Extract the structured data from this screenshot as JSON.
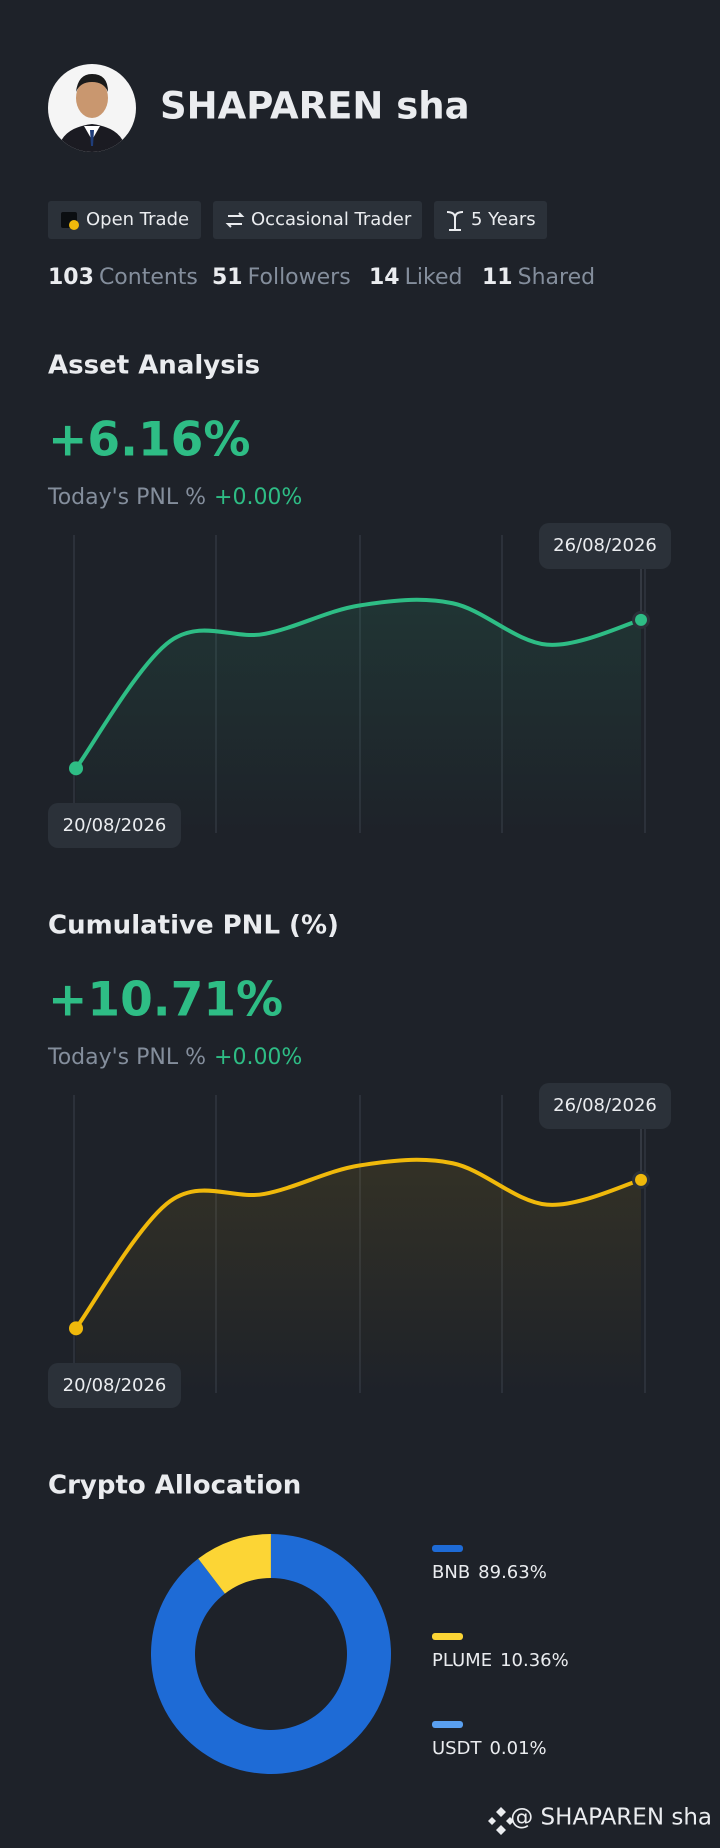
{
  "profile": {
    "name": "SHAPAREN sha",
    "tags": [
      "Open Trade",
      "Occasional Trader",
      "5 Years"
    ],
    "stats": [
      {
        "value": "103",
        "label": "Contents"
      },
      {
        "value": "51",
        "label": "Followers"
      },
      {
        "value": "14",
        "label": "Liked"
      },
      {
        "value": "11",
        "label": "Shared"
      }
    ]
  },
  "chart_data": [
    {
      "type": "line",
      "title": "Asset Analysis",
      "headline": "+6.16%",
      "pnl_label": "Today's PNL %",
      "pnl_value": "+0.00%",
      "categories": [
        "20/08/2026",
        null,
        null,
        null,
        null,
        null,
        "26/08/2026"
      ],
      "values": [
        21.7,
        64.4,
        66.8,
        76.3,
        77.1,
        63.2,
        71.5
      ],
      "ylim": [
        0,
        100
      ],
      "color": "#2ebd85"
    },
    {
      "type": "line",
      "title": "Cumulative PNL (%)",
      "headline": "+10.71%",
      "pnl_label": "Today's PNL %",
      "pnl_value": "+0.00%",
      "categories": [
        "20/08/2026",
        null,
        null,
        null,
        null,
        null,
        "26/08/2026"
      ],
      "values": [
        21.7,
        64.4,
        66.8,
        76.3,
        77.1,
        63.2,
        71.5
      ],
      "ylim": [
        0,
        100
      ],
      "color": "#f0b90b"
    },
    {
      "type": "pie",
      "title": "Crypto Allocation",
      "categories": [
        "BNB",
        "PLUME",
        "USDT"
      ],
      "values": [
        89.63,
        10.36,
        0.01
      ],
      "value_labels": [
        "89.63%",
        "10.36%",
        "0.01%"
      ],
      "colors": [
        "#1e6bd6",
        "#fcd535",
        "#5aa0f0"
      ]
    }
  ],
  "footer": "@ SHAPAREN sha"
}
